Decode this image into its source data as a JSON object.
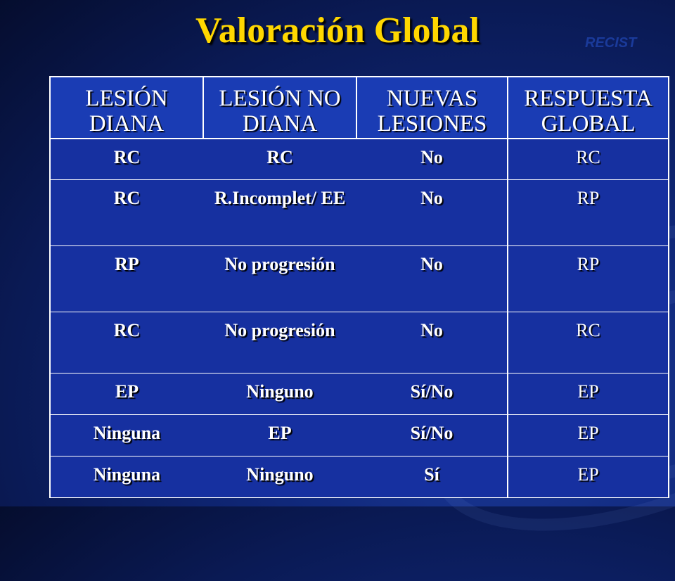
{
  "title": "Valoración Global",
  "recist": "RECIST",
  "headers": [
    "LESIÓN DIANA",
    "LESIÓN NO DIANA",
    "NUEVAS LESIONES",
    "RESPUESTA GLOBAL"
  ],
  "rows": [
    [
      "RC",
      "RC",
      "No",
      "RC"
    ],
    [
      "RC",
      "R.Incomplet/ EE",
      "No",
      "RP"
    ],
    [
      "RP",
      "No progresión",
      "No",
      "RP"
    ],
    [
      "RC",
      "No progresión",
      "No",
      "RC"
    ],
    [
      "EP",
      "Ninguno",
      "Sí/No",
      "EP"
    ],
    [
      "Ninguna",
      "EP",
      "Sí/No",
      "EP"
    ],
    [
      "Ninguna",
      "Ninguno",
      "Sí",
      "EP"
    ]
  ],
  "colors": {
    "title": "#ffd700",
    "background": "#10287a",
    "cell": "#1630a0"
  }
}
